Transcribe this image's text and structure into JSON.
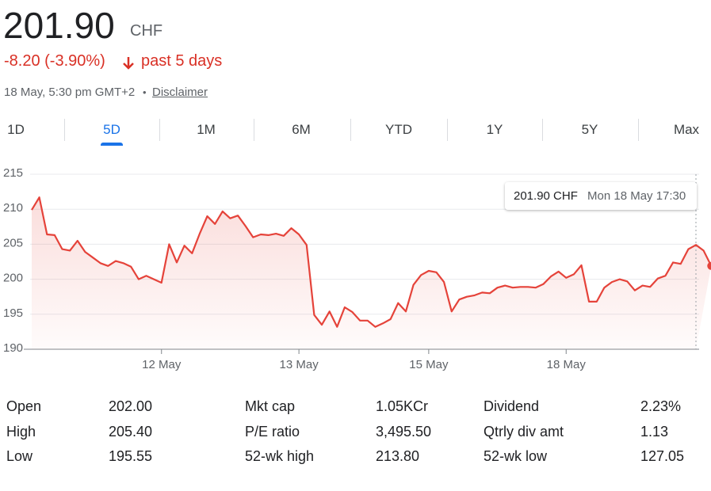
{
  "header": {
    "price": "201.90",
    "currency": "CHF",
    "change": "-8.20 (-3.90%)",
    "period": "past 5 days",
    "timestamp": "18 May, 5:30 pm GMT+2",
    "separator": "•",
    "disclaimer": "Disclaimer"
  },
  "tabs": [
    "1D",
    "5D",
    "1M",
    "6M",
    "YTD",
    "1Y",
    "5Y",
    "Max"
  ],
  "selected_tab": "5D",
  "chart_data": {
    "type": "line",
    "color": "#e5433a",
    "grid": true,
    "values": [
      209.9,
      211.7,
      206.4,
      206.3,
      204.3,
      204.1,
      205.5,
      203.9,
      203.1,
      202.3,
      201.9,
      202.6,
      202.3,
      201.8,
      200.0,
      200.5,
      200.0,
      199.5,
      205.0,
      202.4,
      204.8,
      203.7,
      206.5,
      209.0,
      207.9,
      209.7,
      208.7,
      209.1,
      207.6,
      206.0,
      206.4,
      206.3,
      206.5,
      206.2,
      207.3,
      206.4,
      204.9,
      194.9,
      193.5,
      195.4,
      193.2,
      196.0,
      195.3,
      194.1,
      194.1,
      193.2,
      193.7,
      194.3,
      196.6,
      195.4,
      199.2,
      200.6,
      201.2,
      201.0,
      199.6,
      195.4,
      197.1,
      197.5,
      197.7,
      198.1,
      198.0,
      198.8,
      199.1,
      198.8,
      198.9,
      198.9,
      198.8,
      199.3,
      200.4,
      201.1,
      200.2,
      200.7,
      202.0,
      196.8,
      196.8,
      198.8,
      199.6,
      200.0,
      199.7,
      198.4,
      199.1,
      198.9,
      200.1,
      200.5,
      202.4,
      202.2,
      204.3,
      204.9,
      204.1,
      201.9
    ],
    "ylim": [
      190,
      215
    ],
    "yticks": [
      190,
      195,
      200,
      205,
      210,
      215
    ],
    "xlim": [
      0,
      87
    ],
    "xticks": [
      {
        "value": 17,
        "label": "12 May"
      },
      {
        "value": 35,
        "label": "13 May"
      },
      {
        "value": 52,
        "label": "15 May"
      },
      {
        "value": 70,
        "label": "18 May"
      }
    ],
    "tooltip": {
      "price": "201.90 CHF",
      "time": "Mon 18 May 17:30"
    }
  },
  "stats": [
    [
      {
        "label": "Open",
        "value": "202.00"
      },
      {
        "label": "Mkt cap",
        "value": "1.05KCr"
      },
      {
        "label": "Dividend",
        "value": "2.23%"
      }
    ],
    [
      {
        "label": "High",
        "value": "205.40"
      },
      {
        "label": "P/E ratio",
        "value": "3,495.50"
      },
      {
        "label": "Qtrly div amt",
        "value": "1.13"
      }
    ],
    [
      {
        "label": "Low",
        "value": "195.55"
      },
      {
        "label": "52-wk high",
        "value": "213.80"
      },
      {
        "label": "52-wk low",
        "value": "127.05"
      }
    ]
  ]
}
